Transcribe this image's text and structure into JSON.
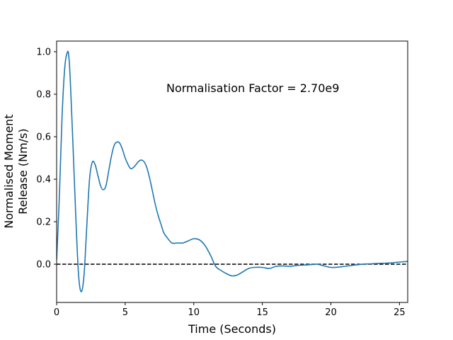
{
  "chart_data": {
    "type": "line",
    "title": "",
    "xlabel": "Time (Seconds)",
    "ylabel_lines": [
      "Normalised Moment",
      "Release (Nm/s)"
    ],
    "xlim": [
      0,
      25.6
    ],
    "ylim": [
      -0.18,
      1.05
    ],
    "x_ticks": [
      0,
      5,
      10,
      15,
      20,
      25
    ],
    "x_tick_labels": [
      "0",
      "5",
      "10",
      "15",
      "20",
      "25"
    ],
    "y_ticks": [
      0.0,
      0.2,
      0.4,
      0.6,
      0.8,
      1.0
    ],
    "y_tick_labels": [
      "0.0",
      "0.2",
      "0.4",
      "0.6",
      "0.8",
      "1.0"
    ],
    "grid": false,
    "annotation": {
      "text": "Normalisation Factor = 2.70e9",
      "x": 8.0,
      "y": 0.81
    },
    "reference_line": {
      "y": 0.0,
      "style": "dashed",
      "color": "#000000"
    },
    "series": [
      {
        "color": "#1f77b4",
        "x": [
          0,
          0.2,
          0.4,
          0.6,
          0.8,
          0.9,
          1.0,
          1.2,
          1.4,
          1.6,
          1.8,
          2.0,
          2.2,
          2.4,
          2.6,
          2.8,
          3.0,
          3.2,
          3.4,
          3.6,
          3.8,
          4.0,
          4.2,
          4.4,
          4.6,
          4.8,
          5.0,
          5.2,
          5.4,
          5.6,
          5.8,
          6.0,
          6.2,
          6.4,
          6.6,
          6.8,
          7.0,
          7.2,
          7.4,
          7.6,
          7.8,
          8.0,
          8.4,
          8.8,
          9.2,
          9.6,
          10.0,
          10.4,
          10.8,
          11.2,
          11.6,
          12.0,
          12.4,
          12.8,
          13.2,
          13.6,
          14.0,
          14.4,
          15.0,
          15.5,
          16.0,
          16.5,
          17.0,
          17.5,
          18.0,
          18.5,
          19.0,
          19.5,
          20.0,
          20.5,
          21.0,
          21.5,
          22.0,
          22.5,
          23.0,
          23.5,
          24.0,
          24.5,
          25.0,
          25.6
        ],
        "y": [
          0.02,
          0.32,
          0.7,
          0.93,
          1.0,
          0.97,
          0.86,
          0.55,
          0.22,
          -0.05,
          -0.13,
          -0.05,
          0.18,
          0.4,
          0.48,
          0.47,
          0.42,
          0.37,
          0.35,
          0.37,
          0.44,
          0.51,
          0.56,
          0.575,
          0.57,
          0.54,
          0.5,
          0.47,
          0.45,
          0.455,
          0.47,
          0.485,
          0.49,
          0.48,
          0.45,
          0.4,
          0.34,
          0.28,
          0.23,
          0.19,
          0.15,
          0.13,
          0.1,
          0.1,
          0.1,
          0.11,
          0.12,
          0.115,
          0.09,
          0.045,
          -0.01,
          -0.03,
          -0.045,
          -0.055,
          -0.05,
          -0.035,
          -0.02,
          -0.015,
          -0.015,
          -0.02,
          -0.01,
          -0.008,
          -0.01,
          -0.006,
          -0.004,
          -0.002,
          0.0,
          -0.008,
          -0.015,
          -0.014,
          -0.01,
          -0.006,
          -0.002,
          0.001,
          0.002,
          0.004,
          0.005,
          0.007,
          0.01,
          0.013
        ]
      }
    ]
  }
}
